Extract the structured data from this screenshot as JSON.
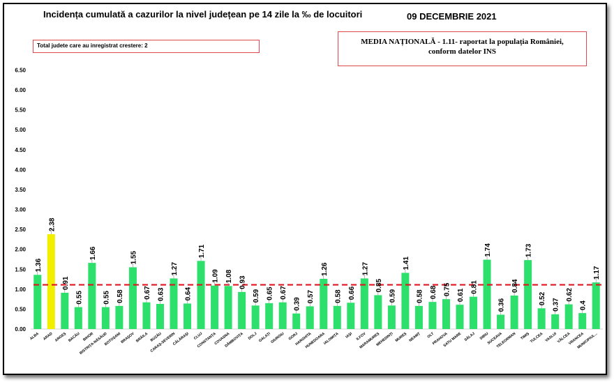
{
  "header": {
    "title": "Incidența cumulată a cazurilor la nivel județean pe 14 zile la ‰ de locuitori",
    "date": "09 DECEMBRIE 2021"
  },
  "info": {
    "counter": "Total judete care au inregistrat crestere: 2",
    "media_line1": "MEDIA NAȚIONALĂ - 1.11- raportat la populația României,",
    "media_line2": "conform datelor INS"
  },
  "colors": {
    "bar": "#2ddf6b",
    "highlight": "#f2ee00",
    "average_line": "#e0141e",
    "axis": "#d0d0d0"
  },
  "chart_data": {
    "type": "bar",
    "ylim": [
      0,
      6.5
    ],
    "yticks": [
      "0.00",
      "0.50",
      "1.00",
      "1.50",
      "2.00",
      "2.50",
      "3.00",
      "3.50",
      "4.00",
      "4.50",
      "5.00",
      "5.50",
      "6.00",
      "6.50"
    ],
    "average": 1.11,
    "highlighted": [
      "ARAD"
    ],
    "grid": false,
    "categories": [
      "ALBA",
      "ARAD",
      "ARGEȘ",
      "BACĂU",
      "BIHOR",
      "BISTRIȚA-NĂSĂUD",
      "BOTOȘANI",
      "BRAȘOV",
      "BRĂILA",
      "BUZĂU",
      "CARAȘ-SEVERIN",
      "CĂLĂRAȘI",
      "CLUJ",
      "CONSTANȚA",
      "COVASNA",
      "DÂMBOVIȚA",
      "DOLJ",
      "GALAȚI",
      "GIURGIU",
      "GORJ",
      "HARGHITA",
      "HUNEDOARA",
      "IALOMIȚA",
      "IAȘI",
      "ILFOV",
      "MARAMUREȘ",
      "MEHEDINȚI",
      "MUREȘ",
      "NEAMȚ",
      "OLT",
      "PRAHOVA",
      "SATU MARE",
      "SĂLAJ",
      "SIBIU",
      "SUCEAVA",
      "TELEORMAN",
      "TIMIȘ",
      "TULCEA",
      "VASLUI",
      "VÂLCEA",
      "VRANCEA",
      "MUNICIPIUL..."
    ],
    "values": [
      1.36,
      2.38,
      0.91,
      0.55,
      1.66,
      0.55,
      0.58,
      1.55,
      0.67,
      0.63,
      1.27,
      0.64,
      1.71,
      1.09,
      1.08,
      0.93,
      0.59,
      0.65,
      0.67,
      0.39,
      0.57,
      1.26,
      0.58,
      0.66,
      1.27,
      0.85,
      0.59,
      1.41,
      0.58,
      0.68,
      0.75,
      0.61,
      0.81,
      1.74,
      0.36,
      0.84,
      1.73,
      0.52,
      0.37,
      0.62,
      0.4,
      1.17
    ],
    "value_labels": [
      "1.36",
      "2.38",
      "0.91",
      "0.55",
      "1.66",
      "0.55",
      "0.58",
      "1.55",
      "0.67",
      "0.63",
      "1.27",
      "0.64",
      "1.71",
      "1.09",
      "1.08",
      "0.93",
      "0.59",
      "0.65",
      "0.67",
      "0.39",
      "0.57",
      "1.26",
      "0.58",
      "0.66",
      "1.27",
      "0.85",
      "0.59",
      "1.41",
      "0.58",
      "0.68",
      "0.75",
      "0.61",
      "0.81",
      "1.74",
      "0.36",
      "0.84",
      "1.73",
      "0.52",
      "0.37",
      "0.62",
      "0.4",
      "1.17"
    ]
  }
}
